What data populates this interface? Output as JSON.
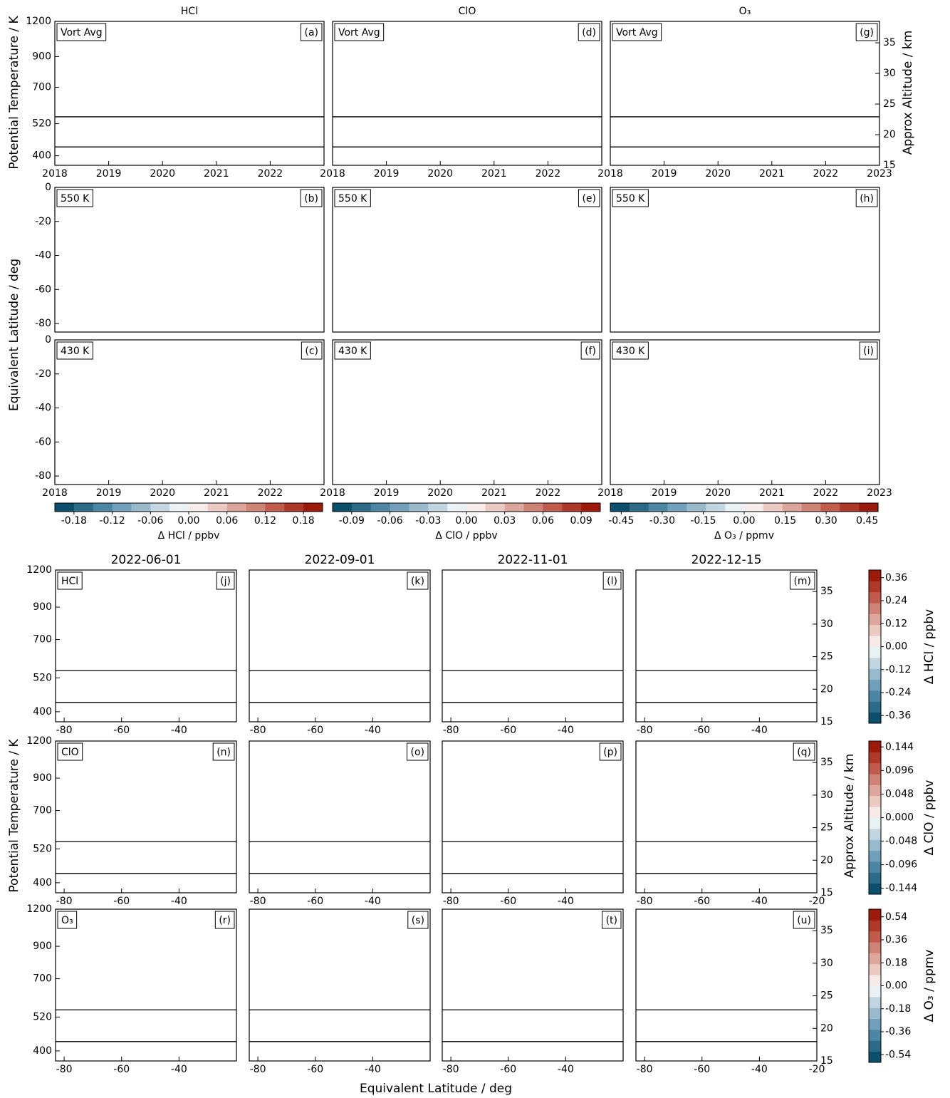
{
  "chart_data": [
    {
      "type": "contour",
      "title": "HCl",
      "panel_label": "(a)",
      "box_label": "Vort Avg",
      "xlim": [
        2018,
        2023
      ],
      "xticks": [
        2018,
        2019,
        2020,
        2021,
        2022
      ],
      "ylim": [
        370,
        1200
      ],
      "yscale": "log",
      "yticks": [
        400,
        520,
        700,
        900,
        1200
      ],
      "hlines": [
        550,
        430
      ]
    },
    {
      "type": "contour",
      "panel_label": "(b)",
      "box_label": "550 K",
      "xlim": [
        2018,
        2023
      ],
      "ylim": [
        -85,
        0
      ],
      "yticks": [
        -80,
        -60,
        -40,
        -20,
        0
      ]
    },
    {
      "type": "contour",
      "panel_label": "(c)",
      "box_label": "430 K",
      "xlim": [
        2018,
        2023
      ],
      "xticks": [
        2018,
        2019,
        2020,
        2021,
        2022
      ],
      "ylim": [
        -85,
        0
      ],
      "yticks": [
        -80,
        -60,
        -40,
        -20,
        0
      ]
    },
    {
      "type": "contour",
      "title": "ClO",
      "panel_label": "(d)",
      "box_label": "Vort Avg",
      "xlim": [
        2018,
        2023
      ],
      "xticks": [
        2018,
        2019,
        2020,
        2021,
        2022
      ],
      "ylim": [
        370,
        1200
      ],
      "yscale": "log",
      "hlines": [
        550,
        430
      ]
    },
    {
      "type": "contour",
      "panel_label": "(e)",
      "box_label": "550 K",
      "xlim": [
        2018,
        2023
      ],
      "ylim": [
        -85,
        0
      ]
    },
    {
      "type": "contour",
      "panel_label": "(f)",
      "box_label": "430 K",
      "xlim": [
        2018,
        2023
      ],
      "xticks": [
        2018,
        2019,
        2020,
        2021,
        2022
      ],
      "ylim": [
        -85,
        0
      ]
    },
    {
      "type": "contour",
      "title": "O₃",
      "panel_label": "(g)",
      "box_label": "Vort Avg",
      "xlim": [
        2018,
        2023
      ],
      "xticks": [
        2018,
        2019,
        2020,
        2021,
        2022,
        2023
      ],
      "ylim": [
        370,
        1200
      ],
      "yscale": "log",
      "y2lim": [
        15,
        38.5
      ],
      "y2ticks": [
        15,
        20,
        25,
        30,
        35
      ],
      "hlines": [
        550,
        430
      ]
    },
    {
      "type": "contour",
      "panel_label": "(h)",
      "box_label": "550 K",
      "xlim": [
        2018,
        2023
      ],
      "ylim": [
        -85,
        0
      ]
    },
    {
      "type": "contour",
      "panel_label": "(i)",
      "box_label": "430 K",
      "xlim": [
        2018,
        2023
      ],
      "xticks": [
        2018,
        2019,
        2020,
        2021,
        2022,
        2023
      ],
      "ylim": [
        -85,
        0
      ]
    },
    {
      "type": "contour",
      "title": "2022-06-01",
      "panel_label": "(j)",
      "box_label": "HCl",
      "xlim": [
        -83,
        -20
      ],
      "xticks": [
        -80,
        -60,
        -40
      ],
      "ylim": [
        370,
        1200
      ],
      "yscale": "log",
      "yticks": [
        400,
        520,
        700,
        900,
        1200
      ],
      "hlines": [
        550,
        430
      ]
    },
    {
      "type": "contour",
      "title": "2022-09-01",
      "panel_label": "(k)",
      "xlim": [
        -83,
        -20
      ],
      "xticks": [
        -80,
        -60,
        -40
      ],
      "ylim": [
        370,
        1200
      ],
      "yscale": "log",
      "hlines": [
        550,
        430
      ]
    },
    {
      "type": "contour",
      "title": "2022-11-01",
      "panel_label": "(l)",
      "xlim": [
        -83,
        -20
      ],
      "xticks": [
        -80,
        -60,
        -40
      ],
      "ylim": [
        370,
        1200
      ],
      "yscale": "log",
      "hlines": [
        550,
        430
      ]
    },
    {
      "type": "contour",
      "title": "2022-12-15",
      "panel_label": "(m)",
      "xlim": [
        -83,
        -20
      ],
      "xticks": [
        -80,
        -60,
        -40
      ],
      "ylim": [
        370,
        1200
      ],
      "yscale": "log",
      "y2lim": [
        15,
        38.3
      ],
      "y2ticks": [
        15,
        20,
        25,
        30,
        35
      ],
      "hlines": [
        550,
        430
      ]
    },
    {
      "type": "contour",
      "panel_label": "(n)",
      "box_label": "ClO",
      "xlim": [
        -83,
        -20
      ],
      "xticks": [
        -80,
        -60,
        -40
      ],
      "ylim": [
        370,
        1200
      ],
      "yscale": "log",
      "yticks": [
        400,
        520,
        700,
        900,
        1200
      ],
      "hlines": [
        550,
        430
      ]
    },
    {
      "type": "contour",
      "panel_label": "(o)",
      "xlim": [
        -83,
        -20
      ],
      "xticks": [
        -80,
        -60,
        -40
      ],
      "ylim": [
        370,
        1200
      ],
      "yscale": "log",
      "hlines": [
        550,
        430
      ]
    },
    {
      "type": "contour",
      "panel_label": "(p)",
      "xlim": [
        -83,
        -20
      ],
      "xticks": [
        -80,
        -60,
        -40
      ],
      "ylim": [
        370,
        1200
      ],
      "yscale": "log",
      "hlines": [
        550,
        430
      ]
    },
    {
      "type": "contour",
      "panel_label": "(q)",
      "xlim": [
        -83,
        -20
      ],
      "xticks": [
        -80,
        -60,
        -40,
        -20
      ],
      "ylim": [
        370,
        1200
      ],
      "yscale": "log",
      "y2lim": [
        15,
        38.3
      ],
      "y2ticks": [
        15,
        20,
        25,
        30,
        35
      ],
      "hlines": [
        550,
        430
      ]
    },
    {
      "type": "contour",
      "panel_label": "(r)",
      "box_label": "O₃",
      "xlim": [
        -83,
        -20
      ],
      "xticks": [
        -80,
        -60,
        -40
      ],
      "ylim": [
        370,
        1200
      ],
      "yscale": "log",
      "yticks": [
        400,
        520,
        700,
        900,
        1200
      ],
      "hlines": [
        550,
        430
      ]
    },
    {
      "type": "contour",
      "panel_label": "(s)",
      "xlim": [
        -83,
        -20
      ],
      "xticks": [
        -80,
        -60,
        -40
      ],
      "ylim": [
        370,
        1200
      ],
      "yscale": "log",
      "hlines": [
        550,
        430
      ]
    },
    {
      "type": "contour",
      "panel_label": "(t)",
      "xlim": [
        -83,
        -20
      ],
      "xticks": [
        -80,
        -60,
        -40
      ],
      "ylim": [
        370,
        1200
      ],
      "yscale": "log",
      "hlines": [
        550,
        430
      ]
    },
    {
      "type": "contour",
      "panel_label": "(u)",
      "xlim": [
        -83,
        -20
      ],
      "xticks": [
        -80,
        -60,
        -40,
        -20
      ],
      "ylim": [
        370,
        1200
      ],
      "yscale": "log",
      "y2lim": [
        15,
        38.3
      ],
      "y2ticks": [
        15,
        20,
        25,
        30,
        35
      ],
      "hlines": [
        550,
        430
      ]
    }
  ],
  "figure": {
    "top_ylabel_theta": "Potential Temperature / K",
    "top_ylabel_lat": "Equivalent Latitude / deg",
    "top_y2label": "Approx Altitude / km",
    "bottom_ylabel": "Potential Temperature / K",
    "bottom_y2label": "Approx Altitude / km",
    "bottom_xlabel": "Equivalent Latitude / deg"
  },
  "colormap": [
    "#0b4f6c",
    "#2b6b88",
    "#4d86a2",
    "#729fb9",
    "#99bacd",
    "#c2d5e1",
    "#eaf1f4",
    "#f6ebe8",
    "#ebcac3",
    "#dea79e",
    "#cf8276",
    "#bf5c4e",
    "#ae3829",
    "#9c1a0c"
  ],
  "colorbars": [
    {
      "label": "Δ HCl  / ppbv",
      "lim": [
        -0.21,
        0.21
      ],
      "ticks": [
        -0.18,
        -0.12,
        -0.06,
        {
          "value": 0,
          "label": "0.00"
        },
        0.06,
        0.12,
        0.18
      ]
    },
    {
      "label": "Δ ClO  / ppbv",
      "lim": [
        -0.105,
        0.105
      ],
      "ticks": [
        -0.09,
        -0.06,
        -0.03,
        {
          "value": 0,
          "label": "0.00"
        },
        0.03,
        0.06,
        0.09
      ]
    },
    {
      "label": "Δ O₃  / ppmv",
      "lim": [
        -0.49,
        0.49
      ],
      "ticks": [
        -0.45,
        {
          "value": -0.3,
          "label": "-0.30"
        },
        -0.15,
        {
          "value": 0,
          "label": "0.00"
        },
        0.15,
        {
          "value": 0.3,
          "label": "0.30"
        },
        0.45
      ]
    },
    {
      "label": "Δ HCl  / ppbv",
      "lim": [
        -0.4,
        0.4
      ],
      "ticks": [
        -0.36,
        -0.24,
        -0.12,
        {
          "value": 0,
          "label": "0.00"
        },
        0.12,
        0.24,
        0.36
      ]
    },
    {
      "label": "Δ ClO  / ppbv",
      "lim": [
        -0.156,
        0.156
      ],
      "ticks": [
        -0.144,
        -0.096,
        -0.048,
        {
          "value": 0,
          "label": "0.000"
        },
        0.048,
        0.096,
        0.144
      ]
    },
    {
      "label": "Δ O₃  / ppmv",
      "lim": [
        -0.6,
        0.6
      ],
      "ticks": [
        -0.54,
        -0.36,
        -0.18,
        {
          "value": 0,
          "label": "0.00"
        },
        0.18,
        0.36,
        0.54
      ]
    }
  ]
}
